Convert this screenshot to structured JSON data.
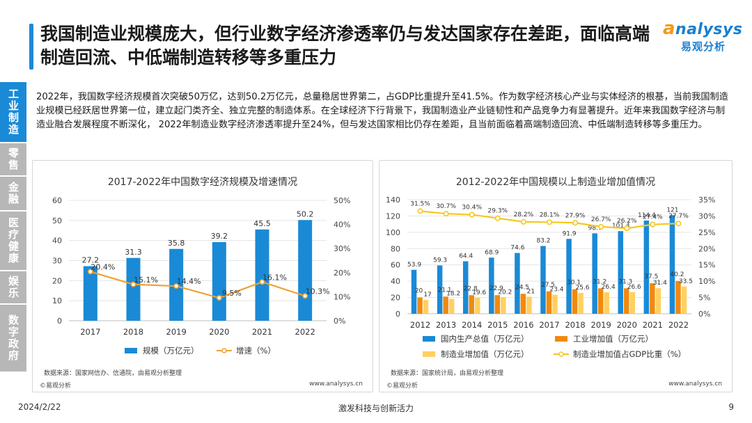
{
  "title": "我国制造业规模庞大，但行业数字经济渗透率仍与发达国家存在差距，面临高端制造回流、中低端制造转移等多重压力",
  "logo": {
    "en_a": "a",
    "en_rest": "nalysys",
    "cn": "易观分析"
  },
  "sidebar": [
    "工业制造",
    "零售",
    "金融",
    "医疗健康",
    "娱乐",
    "数字政府"
  ],
  "intro": "2022年，我国数字经济规模首次突破50万亿，达到50.2万亿元，总量稳居世界第二，占GDP比重提升至41.5%。作为数字经济核心产业与实体经济的根基，当前我国制造业规模已经跃居世界第一位，建立起门类齐全、独立完整的制造体系。在全球经济下行背景下，我国制造业产业链韧性和产品竞争力有显著提升。近年来我国数字经济与制造业融合发展程度不断深化， 2022年制造业数字经济渗透率提升至24%，但与发达国家相比仍存在差距，且当前面临着高端制造回流、中低端制造转移等多重压力。",
  "chart_data": [
    {
      "type": "bar",
      "title": "2017-2022年中国数字经济规模及增速情况",
      "categories": [
        "2017",
        "2018",
        "2019",
        "2020",
        "2021",
        "2022"
      ],
      "ylim": [
        0,
        60
      ],
      "yticks": [
        "0",
        "10",
        "20",
        "30",
        "40",
        "50",
        "60"
      ],
      "y2lim": [
        0,
        50
      ],
      "y2ticks": [
        "0%",
        "10%",
        "20%",
        "30%",
        "40%",
        "50%"
      ],
      "series": [
        {
          "name": "规模（万亿元）",
          "kind": "bar",
          "axis": "left",
          "color": "#1a8ad6",
          "values": [
            27.2,
            31.3,
            35.8,
            39.2,
            45.5,
            50.2
          ],
          "labels": [
            "27.2",
            "31.3",
            "35.8",
            "39.2",
            "45.5",
            "50.2"
          ]
        },
        {
          "name": "增速（%）",
          "kind": "line",
          "axis": "right",
          "color": "#f0a030",
          "values": [
            20.4,
            15.1,
            14.4,
            9.5,
            16.1,
            10.3
          ],
          "labels": [
            "20.4%",
            "15.1%",
            "14.4%",
            "9.5%",
            "16.1%",
            "10.3%"
          ]
        }
      ],
      "source": "数据来源：国家网信办、信通院，由易观分析整理",
      "copyright": "©易观分析",
      "website": "www.analysys.cn"
    },
    {
      "type": "bar",
      "title": "2012-2022年中国规模以上制造业增加值情况",
      "categories": [
        "2012",
        "2013",
        "2014",
        "2015",
        "2016",
        "2017",
        "2018",
        "2019",
        "2020",
        "2021",
        "2022"
      ],
      "ylim": [
        0,
        140
      ],
      "yticks": [
        "0",
        "20",
        "40",
        "60",
        "80",
        "100",
        "120",
        "140"
      ],
      "y2lim": [
        0,
        35
      ],
      "y2ticks": [
        "0%",
        "5%",
        "10%",
        "15%",
        "20%",
        "25%",
        "30%",
        "35%"
      ],
      "series": [
        {
          "name": "国内生产总值（万亿元）",
          "kind": "bar",
          "axis": "left",
          "color": "#1a8ad6",
          "values": [
            53.9,
            59.3,
            64.4,
            68.9,
            74.6,
            83.2,
            91.9,
            98.7,
            101.4,
            114.4,
            121
          ],
          "labels": [
            "53.9",
            "59.3",
            "64.4",
            "68.9",
            "74.6",
            "83.2",
            "91.9",
            "98.7",
            "101.4",
            "114.4",
            "121"
          ]
        },
        {
          "name": "工业增加值（万亿元）",
          "kind": "bar",
          "axis": "left",
          "color": "#f08a10",
          "values": [
            20,
            21.1,
            22.8,
            22.9,
            24.5,
            27.5,
            30.1,
            31.2,
            31.3,
            37.5,
            40.2
          ],
          "labels": [
            "20",
            "21.1",
            "22.8",
            "22.9",
            "24.5",
            "27.5",
            "30.1",
            "31.2",
            "31.3",
            "37.5",
            "40.2"
          ]
        },
        {
          "name": "制造业增加值（万亿元）",
          "kind": "bar",
          "axis": "left",
          "color": "#ffd060",
          "values": [
            17,
            18.2,
            19.6,
            20.2,
            21,
            23.4,
            25.6,
            26.4,
            26.6,
            31.4,
            33.5
          ],
          "labels": [
            "17",
            "18.2",
            "19.6",
            "20.2",
            "21",
            "23.4",
            "25.6",
            "26.4",
            "26.6",
            "31.4",
            "33.5"
          ]
        },
        {
          "name": "制造业增加值占GDP比重（%）",
          "kind": "line",
          "axis": "right",
          "color": "#f5c820",
          "values": [
            31.5,
            30.7,
            30.4,
            29.3,
            28.2,
            28.1,
            27.9,
            26.7,
            26.2,
            27.4,
            27.7
          ],
          "labels": [
            "31.5%",
            "30.7%",
            "30.4%",
            "29.3%",
            "28.2%",
            "28.1%",
            "27.9%",
            "26.7%",
            "26.2%",
            "27.4%",
            "27.7%"
          ]
        }
      ],
      "source": "数据来源：国家统计局，由易观分析整理",
      "copyright": "©易观分析",
      "website": "www.analysys.cn"
    }
  ],
  "footer": {
    "date": "2024/2/22",
    "slogan": "激发科技与创新活力",
    "page": "9"
  }
}
